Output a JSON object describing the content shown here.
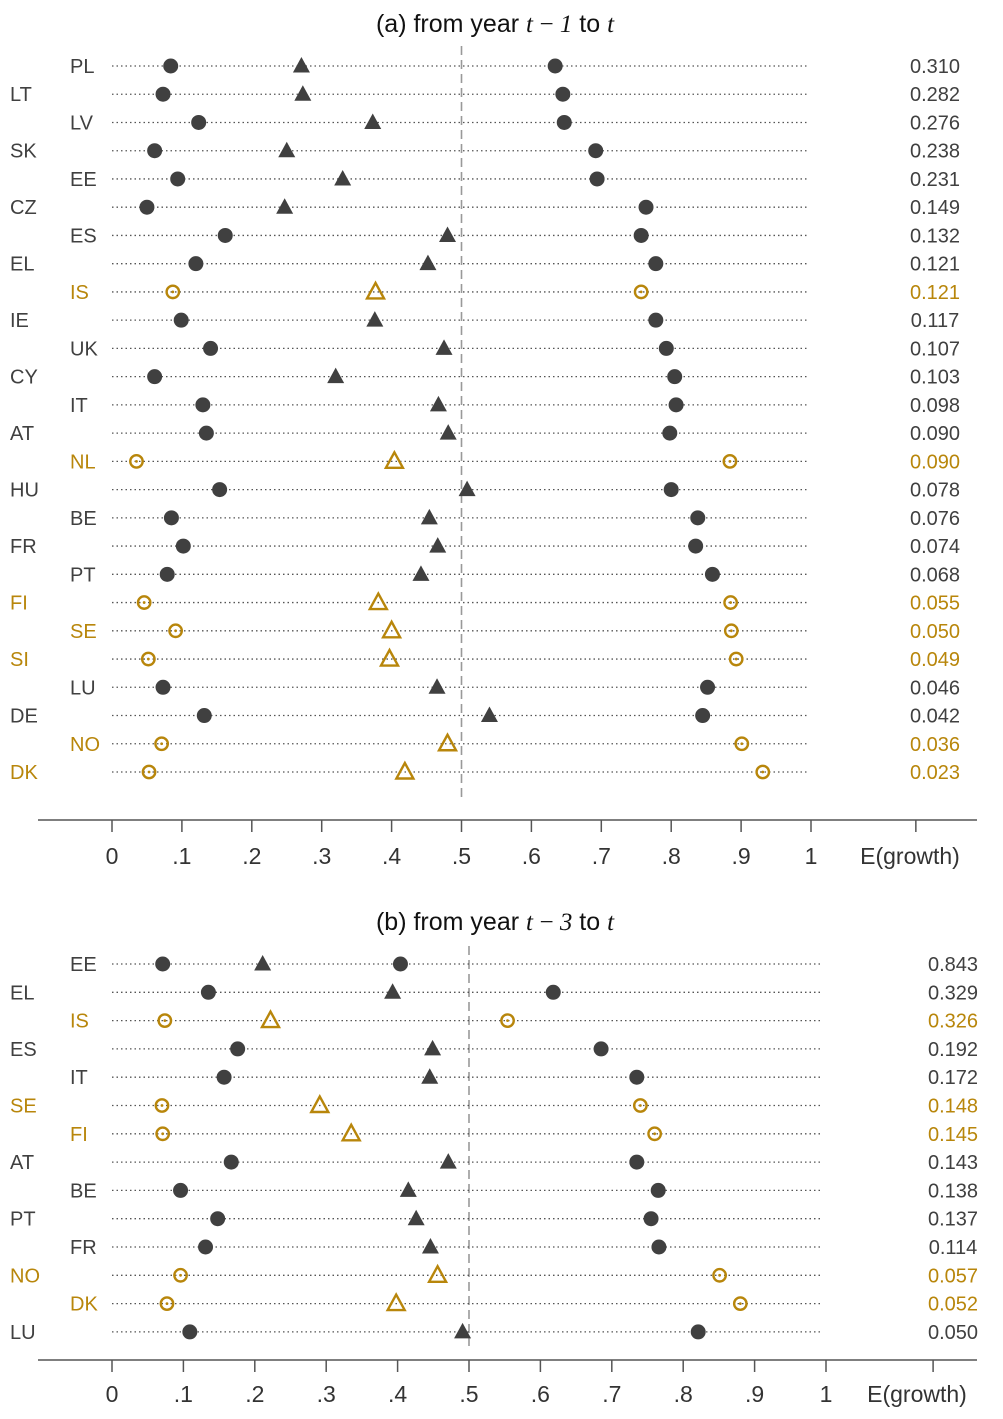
{
  "colors": {
    "dark": "#404040",
    "gold": "#B8860B",
    "axis": "#555555",
    "reference": "#999999"
  },
  "chart_data": [
    {
      "type": "scatter",
      "panel": "a",
      "title_prefix": "(a) from year",
      "title_lag": "t − 1",
      "title_to": "to",
      "title_end": "t",
      "xlabel": "E(growth)",
      "xlim": [
        0,
        1
      ],
      "x_ticks": [
        0,
        0.1,
        0.2,
        0.3,
        0.4,
        0.5,
        0.6,
        0.7,
        0.8,
        0.9,
        1
      ],
      "x_tick_labels": [
        "0",
        ".1",
        ".2",
        ".3",
        ".4",
        ".5",
        ".6",
        ".7",
        ".8",
        ".9",
        "1"
      ],
      "reference_line": 0.5,
      "rows": [
        {
          "country": "PL",
          "low": 0.084,
          "mid": 0.271,
          "high": 0.634,
          "value": "0.310",
          "highlight": false
        },
        {
          "country": "LT",
          "low": 0.073,
          "mid": 0.273,
          "high": 0.645,
          "value": "0.282",
          "highlight": false
        },
        {
          "country": "LV",
          "low": 0.124,
          "mid": 0.373,
          "high": 0.647,
          "value": "0.276",
          "highlight": false
        },
        {
          "country": "SK",
          "low": 0.061,
          "mid": 0.25,
          "high": 0.692,
          "value": "0.238",
          "highlight": false
        },
        {
          "country": "EE",
          "low": 0.094,
          "mid": 0.33,
          "high": 0.694,
          "value": "0.231",
          "highlight": false
        },
        {
          "country": "CZ",
          "low": 0.05,
          "mid": 0.247,
          "high": 0.764,
          "value": "0.149",
          "highlight": false
        },
        {
          "country": "ES",
          "low": 0.162,
          "mid": 0.48,
          "high": 0.757,
          "value": "0.132",
          "highlight": false
        },
        {
          "country": "EL",
          "low": 0.12,
          "mid": 0.452,
          "high": 0.778,
          "value": "0.121",
          "highlight": false
        },
        {
          "country": "IS",
          "low": 0.087,
          "mid": 0.377,
          "high": 0.757,
          "value": "0.121",
          "highlight": true
        },
        {
          "country": "IE",
          "low": 0.099,
          "mid": 0.376,
          "high": 0.778,
          "value": "0.117",
          "highlight": false
        },
        {
          "country": "UK",
          "low": 0.141,
          "mid": 0.475,
          "high": 0.793,
          "value": "0.107",
          "highlight": false
        },
        {
          "country": "CY",
          "low": 0.061,
          "mid": 0.32,
          "high": 0.805,
          "value": "0.103",
          "highlight": false
        },
        {
          "country": "IT",
          "low": 0.13,
          "mid": 0.467,
          "high": 0.807,
          "value": "0.098",
          "highlight": false
        },
        {
          "country": "AT",
          "low": 0.135,
          "mid": 0.481,
          "high": 0.798,
          "value": "0.090",
          "highlight": false
        },
        {
          "country": "NL",
          "low": 0.035,
          "mid": 0.404,
          "high": 0.884,
          "value": "0.090",
          "highlight": true
        },
        {
          "country": "HU",
          "low": 0.154,
          "mid": 0.508,
          "high": 0.8,
          "value": "0.078",
          "highlight": false
        },
        {
          "country": "BE",
          "low": 0.085,
          "mid": 0.454,
          "high": 0.838,
          "value": "0.076",
          "highlight": false
        },
        {
          "country": "FR",
          "low": 0.102,
          "mid": 0.466,
          "high": 0.835,
          "value": "0.074",
          "highlight": false
        },
        {
          "country": "PT",
          "low": 0.079,
          "mid": 0.442,
          "high": 0.859,
          "value": "0.068",
          "highlight": false
        },
        {
          "country": "FI",
          "low": 0.046,
          "mid": 0.381,
          "high": 0.885,
          "value": "0.055",
          "highlight": true
        },
        {
          "country": "SE",
          "low": 0.091,
          "mid": 0.4,
          "high": 0.886,
          "value": "0.050",
          "highlight": true
        },
        {
          "country": "SI",
          "low": 0.052,
          "mid": 0.397,
          "high": 0.893,
          "value": "0.049",
          "highlight": true
        },
        {
          "country": "LU",
          "low": 0.073,
          "mid": 0.465,
          "high": 0.852,
          "value": "0.046",
          "highlight": false
        },
        {
          "country": "DE",
          "low": 0.132,
          "mid": 0.54,
          "high": 0.845,
          "value": "0.042",
          "highlight": false
        },
        {
          "country": "NO",
          "low": 0.071,
          "mid": 0.48,
          "high": 0.901,
          "value": "0.036",
          "highlight": true
        },
        {
          "country": "DK",
          "low": 0.053,
          "mid": 0.419,
          "high": 0.931,
          "value": "0.023",
          "highlight": true
        }
      ]
    },
    {
      "type": "scatter",
      "panel": "b",
      "title_prefix": "(b) from year",
      "title_lag": "t − 3",
      "title_to": "to",
      "title_end": "t",
      "xlabel": "E(growth)",
      "xlim": [
        0,
        1
      ],
      "x_ticks": [
        0,
        0.1,
        0.2,
        0.3,
        0.4,
        0.5,
        0.6,
        0.7,
        0.8,
        0.9,
        1
      ],
      "x_tick_labels": [
        "0",
        ".1",
        ".2",
        ".3",
        ".4",
        ".5",
        ".6",
        ".7",
        ".8",
        ".9",
        "1"
      ],
      "reference_line": 0.5,
      "rows": [
        {
          "country": "EE",
          "low": 0.071,
          "mid": 0.211,
          "high": 0.404,
          "value": "0.843",
          "highlight": false
        },
        {
          "country": "EL",
          "low": 0.135,
          "mid": 0.393,
          "high": 0.618,
          "value": "0.329",
          "highlight": false
        },
        {
          "country": "IS",
          "low": 0.074,
          "mid": 0.222,
          "high": 0.554,
          "value": "0.326",
          "highlight": true
        },
        {
          "country": "ES",
          "low": 0.176,
          "mid": 0.449,
          "high": 0.685,
          "value": "0.192",
          "highlight": false
        },
        {
          "country": "IT",
          "low": 0.157,
          "mid": 0.445,
          "high": 0.735,
          "value": "0.172",
          "highlight": false
        },
        {
          "country": "SE",
          "low": 0.07,
          "mid": 0.291,
          "high": 0.74,
          "value": "0.148",
          "highlight": true
        },
        {
          "country": "FI",
          "low": 0.071,
          "mid": 0.335,
          "high": 0.76,
          "value": "0.145",
          "highlight": true
        },
        {
          "country": "AT",
          "low": 0.167,
          "mid": 0.471,
          "high": 0.735,
          "value": "0.143",
          "highlight": false
        },
        {
          "country": "BE",
          "low": 0.096,
          "mid": 0.415,
          "high": 0.765,
          "value": "0.138",
          "highlight": false
        },
        {
          "country": "PT",
          "low": 0.148,
          "mid": 0.426,
          "high": 0.755,
          "value": "0.137",
          "highlight": false
        },
        {
          "country": "FR",
          "low": 0.131,
          "mid": 0.446,
          "high": 0.766,
          "value": "0.114",
          "highlight": false
        },
        {
          "country": "NO",
          "low": 0.096,
          "mid": 0.456,
          "high": 0.851,
          "value": "0.057",
          "highlight": true
        },
        {
          "country": "DK",
          "low": 0.077,
          "mid": 0.398,
          "high": 0.88,
          "value": "0.052",
          "highlight": true
        },
        {
          "country": "LU",
          "low": 0.109,
          "mid": 0.491,
          "high": 0.821,
          "value": "0.050",
          "highlight": false
        }
      ]
    }
  ]
}
